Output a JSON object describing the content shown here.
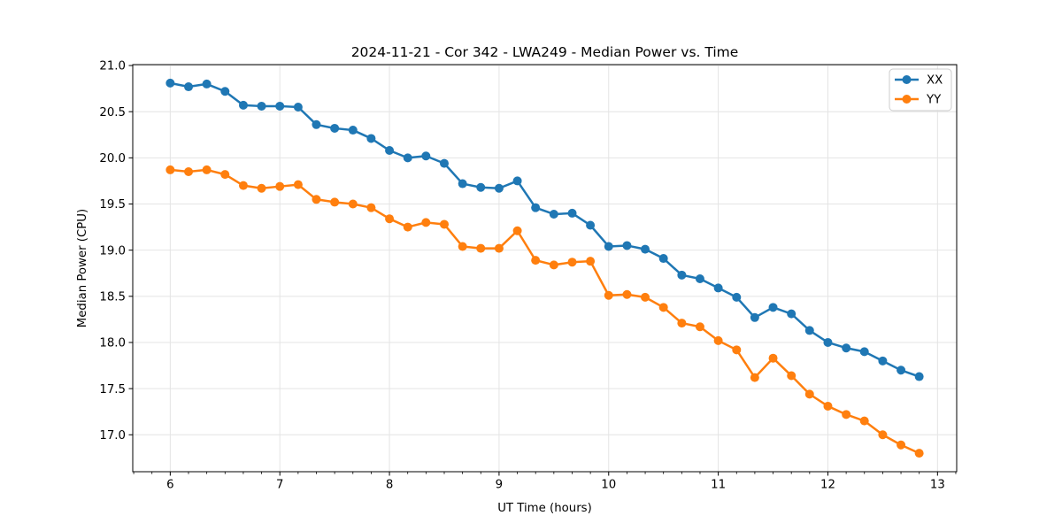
{
  "chart_data": {
    "type": "line",
    "title": "2024-11-21 - Cor 342 - LWA249 - Median Power vs. Time",
    "xlabel": "UT Time (hours)",
    "ylabel": "Median Power (CPU)",
    "xlim": [
      5.658,
      13.175
    ],
    "ylim": [
      16.6,
      21.01
    ],
    "xticks": [
      6,
      7,
      8,
      9,
      10,
      11,
      12,
      13
    ],
    "xtick_labels": [
      "6",
      "7",
      "8",
      "9",
      "10",
      "11",
      "12",
      "13"
    ],
    "yticks": [
      17.0,
      17.5,
      18.0,
      18.5,
      19.0,
      19.5,
      20.0,
      20.5,
      21.0
    ],
    "ytick_labels": [
      "17.0",
      "17.5",
      "18.0",
      "18.5",
      "19.0",
      "19.5",
      "20.0",
      "20.5",
      "21.0"
    ],
    "x_minor_tick_step": 0.166667,
    "grid": true,
    "grid_color": "#e4e4e4",
    "spine_color": "#000000",
    "legend": {
      "position": "upper-right",
      "entries": [
        "XX",
        "YY"
      ]
    },
    "x": [
      6.0,
      6.167,
      6.333,
      6.5,
      6.667,
      6.833,
      7.0,
      7.167,
      7.333,
      7.5,
      7.667,
      7.833,
      8.0,
      8.167,
      8.333,
      8.5,
      8.667,
      8.833,
      9.0,
      9.167,
      9.333,
      9.5,
      9.667,
      9.833,
      10.0,
      10.167,
      10.333,
      10.5,
      10.667,
      10.833,
      11.0,
      11.167,
      11.333,
      11.5,
      11.667,
      11.833,
      12.0,
      12.167,
      12.333,
      12.5,
      12.667,
      12.833
    ],
    "series": [
      {
        "name": "XX",
        "color": "#1f77b4",
        "marker": "circle",
        "values": [
          20.81,
          20.77,
          20.8,
          20.72,
          20.57,
          20.56,
          20.56,
          20.55,
          20.36,
          20.32,
          20.3,
          20.21,
          20.08,
          20.0,
          20.02,
          19.94,
          19.72,
          19.68,
          19.67,
          19.75,
          19.46,
          19.39,
          19.4,
          19.27,
          19.04,
          19.05,
          19.01,
          18.91,
          18.73,
          18.69,
          18.59,
          18.49,
          18.27,
          18.38,
          18.31,
          18.13,
          18.0,
          17.94,
          17.9,
          17.8,
          17.7,
          17.63
        ]
      },
      {
        "name": "YY",
        "color": "#ff7f0e",
        "marker": "circle",
        "values": [
          19.87,
          19.85,
          19.87,
          19.82,
          19.7,
          19.67,
          19.69,
          19.71,
          19.55,
          19.52,
          19.5,
          19.46,
          19.34,
          19.25,
          19.3,
          19.28,
          19.04,
          19.02,
          19.02,
          19.21,
          18.89,
          18.84,
          18.87,
          18.88,
          18.51,
          18.52,
          18.49,
          18.38,
          18.21,
          18.17,
          18.02,
          17.92,
          17.62,
          17.83,
          17.64,
          17.44,
          17.31,
          17.22,
          17.15,
          17.0,
          16.89,
          16.8
        ]
      }
    ]
  }
}
